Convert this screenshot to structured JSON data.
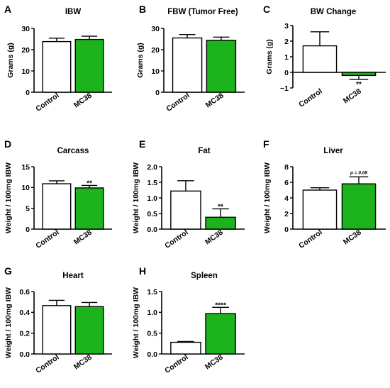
{
  "palette": {
    "control": "#ffffff",
    "mc38": "#1db31d",
    "stroke": "#000000"
  },
  "chart_data": [
    {
      "panel": "A",
      "type": "bar",
      "title": "IBW",
      "ylabel": "Grams (g)",
      "ylim": [
        0,
        30
      ],
      "yticks": [
        "0",
        "10",
        "20",
        "30"
      ],
      "categories": [
        "Control",
        "MC38"
      ],
      "values": [
        23.8,
        24.8
      ],
      "errors": [
        1.6,
        1.5
      ],
      "annotations": [
        "",
        ""
      ]
    },
    {
      "panel": "B",
      "type": "bar",
      "title": "FBW (Tumor Free)",
      "ylabel": "Grams (g)",
      "ylim": [
        0,
        30
      ],
      "yticks": [
        "0",
        "10",
        "20",
        "30"
      ],
      "categories": [
        "Control",
        "MC38"
      ],
      "values": [
        25.5,
        24.4
      ],
      "errors": [
        1.6,
        1.5
      ],
      "annotations": [
        "",
        ""
      ]
    },
    {
      "panel": "C",
      "type": "bar",
      "title": "BW Change",
      "ylabel": "Grams (g)",
      "ylim": [
        -1,
        3
      ],
      "yticks": [
        "−1",
        "0",
        "1",
        "2",
        "3"
      ],
      "categories": [
        "Control",
        "MC38"
      ],
      "values": [
        1.7,
        -0.2
      ],
      "errors": [
        0.9,
        0.25
      ],
      "annotations": [
        "",
        "**"
      ]
    },
    {
      "panel": "D",
      "type": "bar",
      "title": "Carcass",
      "ylabel": "Weight / 100mg IBW",
      "ylim": [
        0,
        15
      ],
      "yticks": [
        "0",
        "5",
        "10",
        "15"
      ],
      "categories": [
        "Control",
        "MC38"
      ],
      "values": [
        10.9,
        9.9
      ],
      "errors": [
        0.7,
        0.6
      ],
      "annotations": [
        "",
        "**"
      ]
    },
    {
      "panel": "E",
      "type": "bar",
      "title": "Fat",
      "ylabel": "Weight / 100mg IBW",
      "ylim": [
        0,
        2.0
      ],
      "yticks": [
        "0.0",
        "0.5",
        "1.0",
        "1.5",
        "2.0"
      ],
      "categories": [
        "Control",
        "MC38"
      ],
      "values": [
        1.22,
        0.38
      ],
      "errors": [
        0.33,
        0.27
      ],
      "annotations": [
        "",
        "**"
      ]
    },
    {
      "panel": "F",
      "type": "bar",
      "title": "Liver",
      "ylabel": "Weight / 100mg IBW",
      "ylim": [
        0,
        8
      ],
      "yticks": [
        "0",
        "2",
        "4",
        "6",
        "8"
      ],
      "categories": [
        "Control",
        "MC38"
      ],
      "values": [
        5.0,
        5.8
      ],
      "errors": [
        0.3,
        0.9
      ],
      "annotations": [
        "",
        "p = 0.08"
      ]
    },
    {
      "panel": "G",
      "type": "bar",
      "title": "Heart",
      "ylabel": "Weight / 100mg IBW",
      "ylim": [
        0,
        0.6
      ],
      "yticks": [
        "0.0",
        "0.2",
        "0.4",
        "0.6"
      ],
      "categories": [
        "Control",
        "MC38"
      ],
      "values": [
        0.465,
        0.455
      ],
      "errors": [
        0.05,
        0.04
      ],
      "annotations": [
        "",
        ""
      ]
    },
    {
      "panel": "H",
      "type": "bar",
      "title": "Spleen",
      "ylabel": "Weight / 100mg IBW",
      "ylim": [
        0,
        1.5
      ],
      "yticks": [
        "0.0",
        "0.5",
        "1.0",
        "1.5"
      ],
      "categories": [
        "Control",
        "MC38"
      ],
      "values": [
        0.28,
        0.97
      ],
      "errors": [
        0.02,
        0.15
      ],
      "annotations": [
        "",
        "****"
      ]
    }
  ]
}
